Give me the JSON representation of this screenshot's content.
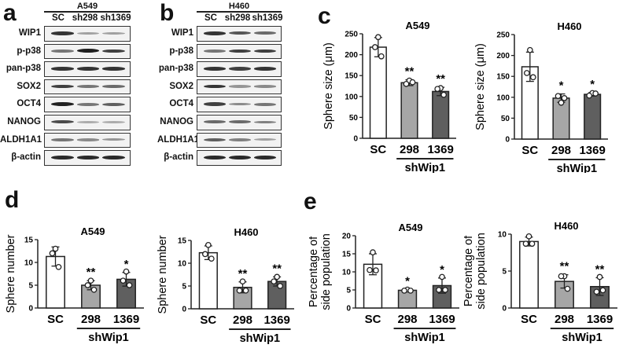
{
  "panels": {
    "a": {
      "letter": "a",
      "cell_line": "A549",
      "lanes": [
        "SC",
        "sh298",
        "sh1369"
      ]
    },
    "b": {
      "letter": "b",
      "cell_line": "H460",
      "lanes": [
        "SC",
        "sh298",
        "sh1369"
      ]
    },
    "c": {
      "letter": "c"
    },
    "d": {
      "letter": "d"
    },
    "e": {
      "letter": "e"
    }
  },
  "blot_rows": [
    "WIP1",
    "p-p38",
    "pan-p38",
    "SOX2",
    "OCT4",
    "NANOG",
    "ALDH1A1",
    "β-actin"
  ],
  "blot_band_intensity": {
    "a": [
      [
        0.85,
        0.35,
        0.35
      ],
      [
        0.55,
        0.95,
        0.8
      ],
      [
        0.85,
        0.85,
        0.85
      ],
      [
        0.8,
        0.55,
        0.6
      ],
      [
        0.95,
        0.55,
        0.65
      ],
      [
        0.75,
        0.3,
        0.3
      ],
      [
        0.55,
        0.45,
        0.4
      ],
      [
        0.9,
        0.9,
        0.9
      ]
    ],
    "b": [
      [
        0.85,
        0.7,
        0.6
      ],
      [
        0.55,
        0.8,
        0.8
      ],
      [
        0.85,
        0.8,
        0.85
      ],
      [
        0.85,
        0.4,
        0.45
      ],
      [
        0.8,
        0.45,
        0.55
      ],
      [
        0.6,
        0.6,
        0.5
      ],
      [
        0.65,
        0.5,
        0.35
      ],
      [
        0.9,
        0.9,
        0.9
      ]
    ]
  },
  "colors": {
    "sc": "#ffffff",
    "sh298": "#a6a6a6",
    "sh1369": "#5f5f5f",
    "axis": "#222222"
  },
  "group_label": "shWip1",
  "chart_data": [
    {
      "id": "c-a549",
      "type": "bar",
      "title": "A549",
      "ylabel": "Sphere size (μm)",
      "xlabel": "shWip1",
      "categories": [
        "SC",
        "298",
        "1369"
      ],
      "values": [
        218,
        133,
        112
      ],
      "errors": [
        23,
        7,
        10
      ],
      "points": [
        [
          242,
          218,
          196
        ],
        [
          138,
          130,
          134
        ],
        [
          120,
          118,
          104
        ]
      ],
      "significance": [
        "",
        "**",
        "**"
      ],
      "ylim": [
        0,
        250
      ],
      "yticks": [
        0,
        50,
        100,
        150,
        200,
        250
      ]
    },
    {
      "id": "c-h460",
      "type": "bar",
      "title": "H460",
      "ylabel": "Sphere size (μm)",
      "xlabel": "shWip1",
      "categories": [
        "SC",
        "298",
        "1369"
      ],
      "values": [
        173,
        98,
        107
      ],
      "errors": [
        35,
        10,
        4
      ],
      "points": [
        [
          213,
          158,
          148
        ],
        [
          87,
          103,
          98
        ],
        [
          110,
          104,
          109
        ]
      ],
      "significance": [
        "",
        "*",
        "*"
      ],
      "ylim": [
        0,
        250
      ],
      "yticks": [
        0,
        50,
        100,
        150,
        200,
        250
      ]
    },
    {
      "id": "d-a549",
      "type": "bar",
      "title": "A549",
      "ylabel": "Sphere number",
      "xlabel": "shWip1",
      "categories": [
        "SC",
        "298",
        "1369"
      ],
      "values": [
        11.3,
        5.0,
        6.3
      ],
      "errors": [
        2.1,
        1.0,
        1.5
      ],
      "points": [
        [
          13,
          12,
          9
        ],
        [
          6,
          5,
          4
        ],
        [
          8,
          6,
          5
        ]
      ],
      "significance": [
        "",
        "**",
        "*"
      ],
      "ylim": [
        0,
        15
      ],
      "yticks": [
        0,
        5,
        10,
        15
      ]
    },
    {
      "id": "d-h460",
      "type": "bar",
      "title": "H460",
      "ylabel": "Sphere number",
      "xlabel": "shWip1",
      "categories": [
        "SC",
        "298",
        "1369"
      ],
      "values": [
        12.3,
        4.7,
        6.0
      ],
      "errors": [
        1.5,
        1.2,
        1.0
      ],
      "points": [
        [
          14,
          12,
          11
        ],
        [
          6,
          4,
          4
        ],
        [
          7,
          6,
          5
        ]
      ],
      "significance": [
        "",
        "**",
        "**"
      ],
      "ylim": [
        0,
        15
      ],
      "yticks": [
        0,
        5,
        10,
        15
      ]
    },
    {
      "id": "e-a549",
      "type": "bar",
      "title": "A549",
      "ylabel": "Percentage of\nside population",
      "xlabel": "shWip1",
      "categories": [
        "SC",
        "298",
        "1369"
      ],
      "values": [
        12.1,
        4.9,
        6.2
      ],
      "errors": [
        2.9,
        0.2,
        2.1
      ],
      "points": [
        [
          15.4,
          10.5,
          10.4
        ],
        [
          5.1,
          4.8,
          4.8
        ],
        [
          8.6,
          5.0,
          5.0
        ]
      ],
      "significance": [
        "",
        "*",
        "*"
      ],
      "ylim": [
        0,
        20
      ],
      "yticks": [
        0,
        5,
        10,
        15,
        20
      ]
    },
    {
      "id": "e-h460",
      "type": "bar",
      "title": "H460",
      "ylabel": "Percentage of\nside population",
      "xlabel": "shWip1",
      "categories": [
        "SC",
        "298",
        "1369"
      ],
      "values": [
        9.0,
        3.6,
        2.9
      ],
      "errors": [
        0.6,
        0.9,
        1.2
      ],
      "points": [
        [
          9.7,
          8.7,
          8.7
        ],
        [
          4.3,
          4.3,
          2.6
        ],
        [
          4.2,
          2.2,
          2.4
        ]
      ],
      "significance": [
        "",
        "**",
        "**"
      ],
      "ylim": [
        0,
        10
      ],
      "yticks": [
        0,
        5,
        10
      ]
    }
  ]
}
